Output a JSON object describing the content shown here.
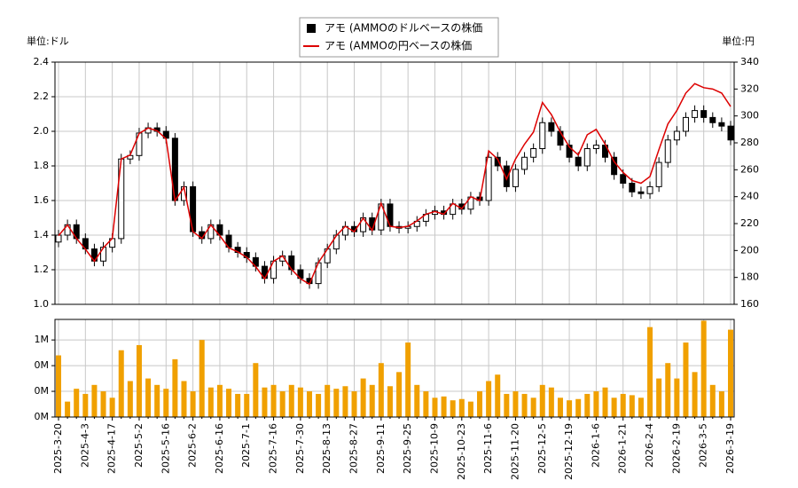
{
  "chart_data": [
    {
      "type": "candlestick",
      "ylabel": "単位:ドル",
      "y2label": "単位:円",
      "ylim": [
        1.0,
        2.4
      ],
      "yticks": [
        {
          "value": 1.0,
          "label": "1.0"
        },
        1.2,
        1.4,
        1.6,
        1.8,
        {
          "value": 2.0,
          "label": "2.0"
        },
        2.2,
        2.4
      ],
      "y2lim": [
        160,
        340
      ],
      "y2ticks": [
        160,
        180,
        200,
        220,
        240,
        260,
        280,
        300,
        320,
        340
      ],
      "grid": true,
      "legend": "top",
      "series": [
        {
          "name": "アモ (AMMOのドルベースの株価",
          "color": "#000000",
          "open": [
            1.36,
            1.4,
            1.46,
            1.38,
            1.32,
            1.25,
            1.33,
            1.38,
            1.84,
            1.86,
            1.99,
            2.02,
            2.0,
            1.96,
            1.6,
            1.68,
            1.42,
            1.38,
            1.46,
            1.4,
            1.33,
            1.3,
            1.27,
            1.22,
            1.15,
            1.25,
            1.28,
            1.2,
            1.15,
            1.12,
            1.24,
            1.32,
            1.4,
            1.45,
            1.42,
            1.5,
            1.43,
            1.58,
            1.45,
            1.44,
            1.45,
            1.48,
            1.52,
            1.54,
            1.52,
            1.58,
            1.55,
            1.62,
            1.6,
            1.85,
            1.8,
            1.68,
            1.78,
            1.85,
            1.9,
            2.05,
            2.0,
            1.92,
            1.85,
            1.8,
            1.9,
            1.92,
            1.85,
            1.75,
            1.7,
            1.65,
            1.64,
            1.68,
            1.82,
            1.95,
            2.0,
            2.08,
            2.12,
            2.08,
            2.05,
            2.03
          ],
          "high": [
            1.43,
            1.49,
            1.49,
            1.41,
            1.35,
            1.36,
            1.41,
            1.87,
            1.89,
            2.02,
            2.05,
            2.05,
            2.03,
            1.99,
            1.71,
            1.71,
            1.45,
            1.49,
            1.49,
            1.43,
            1.36,
            1.33,
            1.3,
            1.25,
            1.28,
            1.31,
            1.31,
            1.23,
            1.18,
            1.27,
            1.35,
            1.43,
            1.48,
            1.48,
            1.53,
            1.53,
            1.61,
            1.61,
            1.48,
            1.48,
            1.51,
            1.55,
            1.57,
            1.57,
            1.61,
            1.61,
            1.65,
            1.65,
            1.88,
            1.88,
            1.83,
            1.81,
            1.88,
            1.93,
            2.08,
            2.08,
            2.03,
            1.95,
            1.88,
            1.93,
            1.95,
            1.95,
            1.88,
            1.78,
            1.73,
            1.68,
            1.71,
            1.85,
            1.98,
            2.03,
            2.11,
            2.15,
            2.15,
            2.11,
            2.08,
            2.06
          ],
          "low": [
            1.33,
            1.37,
            1.35,
            1.29,
            1.22,
            1.22,
            1.3,
            1.35,
            1.81,
            1.83,
            1.96,
            1.97,
            1.93,
            1.57,
            1.57,
            1.39,
            1.35,
            1.35,
            1.37,
            1.3,
            1.27,
            1.24,
            1.19,
            1.12,
            1.12,
            1.22,
            1.17,
            1.12,
            1.09,
            1.09,
            1.21,
            1.29,
            1.37,
            1.39,
            1.39,
            1.4,
            1.4,
            1.42,
            1.41,
            1.41,
            1.42,
            1.45,
            1.49,
            1.49,
            1.49,
            1.52,
            1.52,
            1.57,
            1.57,
            1.77,
            1.65,
            1.65,
            1.75,
            1.82,
            1.87,
            1.97,
            1.89,
            1.82,
            1.77,
            1.77,
            1.87,
            1.82,
            1.72,
            1.67,
            1.62,
            1.61,
            1.61,
            1.65,
            1.79,
            1.92,
            1.97,
            2.05,
            2.05,
            2.02,
            2.0,
            1.92
          ],
          "close": [
            1.4,
            1.46,
            1.38,
            1.32,
            1.25,
            1.33,
            1.38,
            1.84,
            1.86,
            1.99,
            2.02,
            2.0,
            1.96,
            1.6,
            1.68,
            1.42,
            1.38,
            1.46,
            1.4,
            1.33,
            1.3,
            1.27,
            1.22,
            1.15,
            1.25,
            1.28,
            1.2,
            1.15,
            1.12,
            1.24,
            1.32,
            1.4,
            1.45,
            1.42,
            1.5,
            1.43,
            1.58,
            1.45,
            1.44,
            1.45,
            1.48,
            1.52,
            1.54,
            1.52,
            1.58,
            1.55,
            1.62,
            1.6,
            1.85,
            1.8,
            1.68,
            1.78,
            1.85,
            1.9,
            2.05,
            2.0,
            1.92,
            1.85,
            1.8,
            1.9,
            1.92,
            1.85,
            1.75,
            1.7,
            1.65,
            1.64,
            1.68,
            1.82,
            1.95,
            2.0,
            2.08,
            2.12,
            2.08,
            2.05,
            2.03,
            1.95
          ]
        },
        {
          "name": "アモ (AMMOの円ベースの株価",
          "color": "#dd0000",
          "axis": "y2",
          "values": [
            211,
            219,
            209,
            201,
            192,
            202,
            209,
            268,
            271,
            287,
            291,
            289,
            283,
            237,
            247,
            214,
            209,
            219,
            211,
            202,
            199,
            195,
            188,
            179,
            192,
            196,
            186,
            179,
            175,
            191,
            201,
            211,
            218,
            214,
            224,
            215,
            235,
            218,
            217,
            218,
            222,
            227,
            229,
            227,
            235,
            231,
            240,
            237,
            274,
            268,
            253,
            268,
            279,
            288,
            310,
            301,
            288,
            277,
            271,
            286,
            290,
            279,
            266,
            258,
            252,
            250,
            255,
            275,
            294,
            304,
            317,
            324,
            321,
            320,
            317,
            307
          ]
        }
      ]
    },
    {
      "type": "bar",
      "color": "#f0a000",
      "categories": [
        "2025-3-20",
        null,
        null,
        "2025-4-3",
        null,
        null,
        "2025-4-17",
        null,
        null,
        "2025-5-2",
        null,
        null,
        "2025-5-16",
        null,
        null,
        "2025-6-2",
        null,
        null,
        "2025-6-16",
        null,
        null,
        "2025-7-1",
        null,
        null,
        "2025-7-16",
        null,
        null,
        "2025-7-30",
        null,
        null,
        "2025-8-13",
        null,
        null,
        "2025-8-27",
        null,
        null,
        "2025-9-11",
        null,
        null,
        "2025-9-25",
        null,
        null,
        "2025-10-9",
        null,
        null,
        "2025-10-23",
        null,
        null,
        "2025-11-6",
        null,
        null,
        "2025-11-20",
        null,
        null,
        "2025-12-5",
        null,
        null,
        "2025-12-19",
        null,
        null,
        "2026-1-6",
        null,
        null,
        "2026-1-21",
        null,
        null,
        "2026-2-4",
        null,
        null,
        "2026-2-19",
        null,
        null,
        "2026-3-5",
        null,
        null,
        "2026-3-19"
      ],
      "values": [
        480000,
        120000,
        220000,
        180000,
        250000,
        200000,
        150000,
        520000,
        280000,
        560000,
        300000,
        250000,
        220000,
        450000,
        280000,
        200000,
        600000,
        230000,
        250000,
        220000,
        180000,
        180000,
        420000,
        230000,
        250000,
        200000,
        250000,
        230000,
        200000,
        180000,
        250000,
        220000,
        240000,
        200000,
        300000,
        250000,
        420000,
        240000,
        350000,
        580000,
        250000,
        200000,
        150000,
        160000,
        130000,
        140000,
        120000,
        200000,
        280000,
        330000,
        180000,
        200000,
        180000,
        150000,
        250000,
        230000,
        150000,
        130000,
        140000,
        180000,
        200000,
        230000,
        150000,
        180000,
        170000,
        150000,
        700000,
        300000,
        420000,
        300000,
        580000,
        350000,
        750000,
        250000,
        200000,
        680000
      ],
      "ylim": [
        0,
        760000
      ],
      "yticks": [
        {
          "value": 0,
          "label": "0M"
        },
        {
          "value": 200000,
          "label": "0M"
        },
        {
          "value": 400000,
          "label": "0M"
        },
        {
          "value": 600000,
          "label": "1M"
        }
      ],
      "grid": true
    }
  ]
}
